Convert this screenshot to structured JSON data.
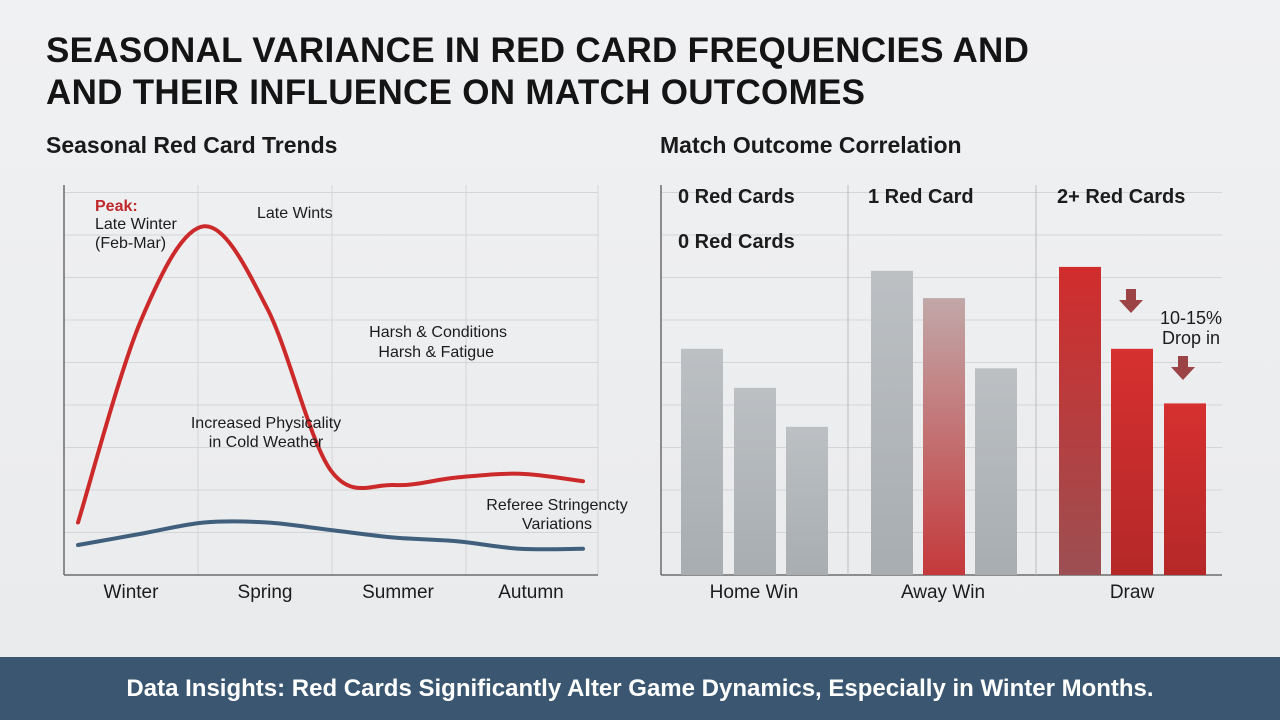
{
  "title_line1": "SEASONAL VARIANCE IN RED CARD FREQUENCIES AND",
  "title_line2": "AND THEIR INFLUENCE ON MATCH OUTCOMES",
  "footer": "Data Insights: Red Cards Significantly Alter Game Dynamics, Especially in Winter Months.",
  "colors": {
    "red": "#cc2a2a",
    "blue": "#3f5f7d",
    "gray": "#b4b9bd",
    "footer": "#3a5670"
  },
  "chart_data": [
    {
      "type": "line",
      "title": "Seasonal Red Card Trends",
      "categories": [
        "Winter",
        "Spring",
        "Summer",
        "Autumn"
      ],
      "x": [
        0,
        0.5,
        1,
        1.5,
        2,
        2.5,
        3,
        3.5,
        4
      ],
      "series": [
        {
          "color": "#cc2a2a",
          "values": [
            14,
            68,
            93,
            71,
            28,
            24,
            26,
            27,
            25
          ]
        },
        {
          "color": "#3f5f7d",
          "values": [
            8,
            11,
            14,
            14,
            12,
            10,
            9,
            7,
            7
          ]
        }
      ],
      "ylim": [
        0,
        100
      ],
      "grid": true,
      "annotations": {
        "peak_label": "Peak:",
        "peak_line1": "Late Winter",
        "peak_line2": "(Feb-Mar)",
        "late": "Late Wints",
        "harsh1": "Harsh & Conditions",
        "harsh2": "Harsh & Fatigue",
        "phys1": "Increased Physicality",
        "phys2": "in Cold Weather",
        "ref1": "Referee Stringencty",
        "ref2": "Variations"
      }
    },
    {
      "type": "bar",
      "title": "Match Outcome Correlation",
      "categories": [
        "Home Win",
        "Away Win",
        "Draw"
      ],
      "group_labels": [
        "0 Red Cards",
        "1 Red Card",
        "2+ Red Cards"
      ],
      "group_sublabel": "0 Red Cards",
      "groups": [
        {
          "values": [
            58,
            48,
            38
          ],
          "colors": [
            "#b4b9bd",
            "#b4b9bd",
            "#b4b9bd"
          ]
        },
        {
          "values": [
            78,
            71,
            53
          ],
          "colors": [
            "#b4b9bd",
            "#cc2a2a",
            "#b4b9bd"
          ]
        },
        {
          "values": [
            79,
            58,
            44
          ],
          "colors": [
            "#cc2a2a",
            "#cc2a2a",
            "#cc2a2a"
          ]
        }
      ],
      "ylim": [
        0,
        100
      ],
      "grid": true,
      "annotation_line1": "10-15%",
      "annotation_line2": "Drop in"
    }
  ]
}
